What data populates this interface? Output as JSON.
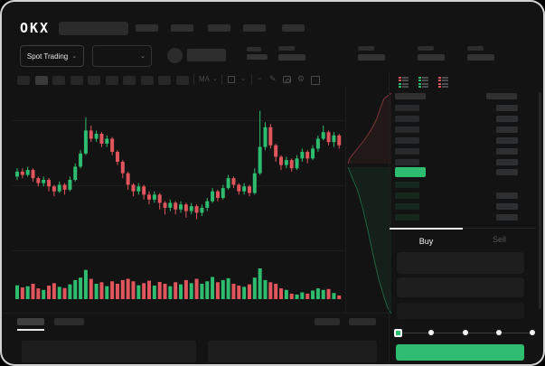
{
  "colors": {
    "up": "#2ebd70",
    "down": "#e0565c",
    "accent_green": "#2ebd70",
    "ask_bar": "#27292b",
    "bid_bar": "#16281e",
    "amount_bar": "#2d2f31",
    "header_bar": "#303030"
  },
  "topbar": {
    "logo_text": "OKX",
    "search": {
      "placeholder": ""
    },
    "nav_items": [
      {},
      {},
      {},
      {},
      {}
    ]
  },
  "trade_controls": {
    "market_type_label": "Spot Trading",
    "pair_select_value": "",
    "ticker_stats": [
      {},
      {},
      {},
      {},
      {}
    ]
  },
  "chart_toolbar": {
    "intervals": [
      {
        "active": false
      },
      {
        "active": true
      },
      {
        "active": false
      },
      {
        "active": false
      },
      {
        "active": false
      },
      {
        "active": false
      },
      {
        "active": false
      },
      {
        "active": false
      },
      {
        "active": false
      },
      {
        "active": false
      }
    ],
    "indicator_label": "MA",
    "icons": {
      "chevron": "⌄",
      "wave": "~",
      "pencil": "✎",
      "gear": "⚙"
    }
  },
  "chart_data": {
    "type": "candlestick",
    "title": "",
    "price_scale": "relative 0-100 (no axis labels visible)",
    "candles": [
      [
        52,
        55,
        57,
        50
      ],
      [
        55,
        53,
        57,
        51
      ],
      [
        53,
        56,
        58,
        52
      ],
      [
        56,
        51,
        57,
        49
      ],
      [
        51,
        48,
        52,
        46
      ],
      [
        48,
        50,
        52,
        46
      ],
      [
        50,
        46,
        51,
        43
      ],
      [
        46,
        43,
        47,
        40
      ],
      [
        43,
        47,
        49,
        42
      ],
      [
        47,
        44,
        48,
        41
      ],
      [
        44,
        50,
        52,
        43
      ],
      [
        50,
        58,
        60,
        49
      ],
      [
        58,
        66,
        68,
        57
      ],
      [
        66,
        80,
        88,
        65
      ],
      [
        80,
        75,
        83,
        73
      ],
      [
        75,
        78,
        80,
        73
      ],
      [
        78,
        72,
        79,
        70
      ],
      [
        72,
        75,
        77,
        70
      ],
      [
        75,
        67,
        76,
        65
      ],
      [
        67,
        61,
        68,
        59
      ],
      [
        61,
        54,
        62,
        51
      ],
      [
        54,
        47,
        55,
        44
      ],
      [
        47,
        43,
        48,
        40
      ],
      [
        43,
        46,
        48,
        41
      ],
      [
        46,
        41,
        47,
        38
      ],
      [
        41,
        38,
        43,
        35
      ],
      [
        38,
        41,
        43,
        36
      ],
      [
        41,
        36,
        42,
        32
      ],
      [
        36,
        33,
        37,
        29
      ],
      [
        33,
        36,
        38,
        31
      ],
      [
        36,
        32,
        37,
        29
      ],
      [
        32,
        35,
        37,
        30
      ],
      [
        35,
        31,
        36,
        27
      ],
      [
        31,
        34,
        36,
        29
      ],
      [
        34,
        30,
        35,
        26
      ],
      [
        30,
        33,
        35,
        28
      ],
      [
        33,
        37,
        39,
        31
      ],
      [
        37,
        43,
        45,
        36
      ],
      [
        43,
        39,
        44,
        37
      ],
      [
        39,
        45,
        47,
        38
      ],
      [
        45,
        51,
        53,
        44
      ],
      [
        51,
        47,
        52,
        45
      ],
      [
        47,
        43,
        48,
        41
      ],
      [
        43,
        46,
        48,
        41
      ],
      [
        46,
        42,
        47,
        40
      ],
      [
        42,
        54,
        57,
        41
      ],
      [
        54,
        70,
        92,
        53
      ],
      [
        70,
        82,
        85,
        68
      ],
      [
        82,
        71,
        84,
        69
      ],
      [
        71,
        64,
        72,
        61
      ],
      [
        64,
        59,
        65,
        56
      ],
      [
        59,
        62,
        64,
        57
      ],
      [
        62,
        57,
        63,
        55
      ],
      [
        57,
        63,
        65,
        56
      ],
      [
        63,
        67,
        69,
        61
      ],
      [
        67,
        63,
        68,
        60
      ],
      [
        63,
        69,
        71,
        62
      ],
      [
        69,
        75,
        77,
        67
      ],
      [
        75,
        79,
        83,
        74
      ],
      [
        79,
        73,
        80,
        71
      ],
      [
        73,
        77,
        79,
        70
      ],
      [
        77,
        71,
        78,
        69
      ]
    ],
    "volume": [
      0.45,
      0.38,
      0.42,
      0.5,
      0.35,
      0.3,
      0.44,
      0.52,
      0.4,
      0.36,
      0.48,
      0.62,
      0.7,
      0.95,
      0.66,
      0.5,
      0.55,
      0.42,
      0.58,
      0.5,
      0.62,
      0.66,
      0.58,
      0.45,
      0.52,
      0.6,
      0.44,
      0.56,
      0.5,
      0.42,
      0.55,
      0.48,
      0.62,
      0.52,
      0.66,
      0.5,
      0.58,
      0.72,
      0.55,
      0.62,
      0.68,
      0.5,
      0.44,
      0.4,
      0.48,
      0.7,
      1.0,
      0.62,
      0.55,
      0.5,
      0.35,
      0.3,
      0.18,
      0.15,
      0.22,
      0.18,
      0.28,
      0.35,
      0.3,
      0.33,
      0.2,
      0.12
    ],
    "depth": {
      "asks_line": [
        [
          50,
          6
        ],
        [
          42,
          12
        ],
        [
          38,
          22
        ],
        [
          34,
          34
        ],
        [
          28,
          46
        ],
        [
          20,
          58
        ],
        [
          12,
          68
        ],
        [
          4,
          78
        ],
        [
          2,
          84
        ]
      ],
      "bids_line": [
        [
          2,
          88
        ],
        [
          6,
          98
        ],
        [
          12,
          112
        ],
        [
          18,
          132
        ],
        [
          24,
          158
        ],
        [
          30,
          186
        ],
        [
          36,
          212
        ],
        [
          42,
          232
        ],
        [
          46,
          244
        ],
        [
          50,
          250
        ]
      ]
    }
  },
  "order_book": {
    "view_icons": [
      {
        "name": "book-both",
        "rows": [
          "down",
          "down",
          "up",
          "up"
        ]
      },
      {
        "name": "book-bids",
        "rows": [
          "up",
          "up",
          "up",
          "up"
        ]
      },
      {
        "name": "book-asks",
        "rows": [
          "down",
          "down",
          "down",
          "down"
        ]
      }
    ],
    "asks": [
      {
        "amount": true
      },
      {
        "amount": true
      },
      {
        "amount": true
      },
      {
        "amount": true
      },
      {
        "amount": true
      },
      {
        "amount": true
      }
    ],
    "last_price": {
      "highlighted": true,
      "amount": true
    },
    "bids": [
      {
        "amount": false
      },
      {
        "amount": true
      },
      {
        "amount": true
      },
      {
        "amount": true
      }
    ]
  },
  "order_form": {
    "tabs": {
      "buy_label": "Buy",
      "sell_label": "Sell",
      "active": "buy"
    },
    "slider": {
      "ticks": 5,
      "active_tick": 0
    },
    "buy_button_label": ""
  }
}
